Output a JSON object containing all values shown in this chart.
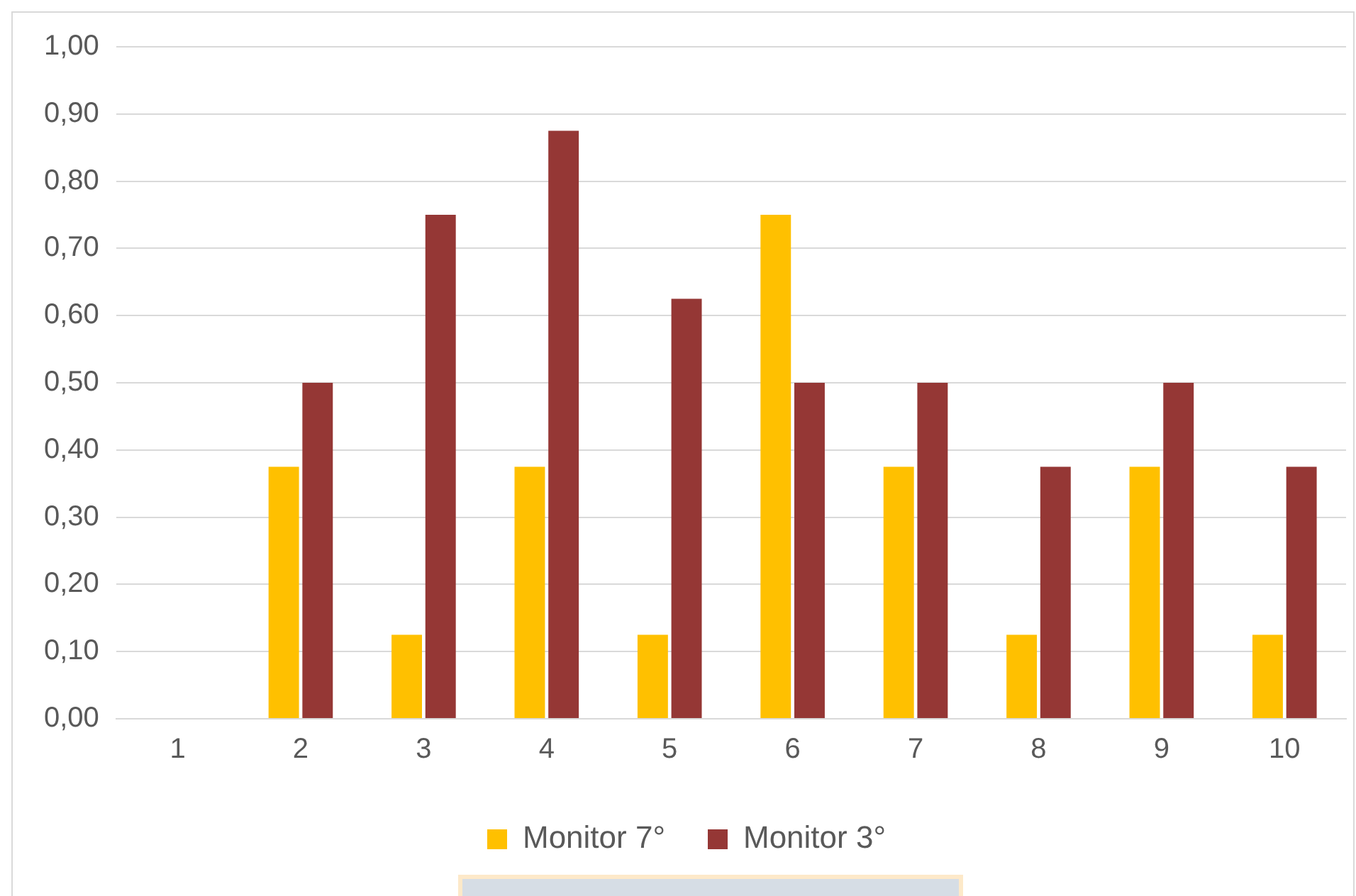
{
  "chart_data": {
    "type": "bar",
    "categories": [
      "1",
      "2",
      "3",
      "4",
      "5",
      "6",
      "7",
      "8",
      "9",
      "10"
    ],
    "series": [
      {
        "name": "Monitor 7°",
        "color": "#ffc000",
        "values": [
          0,
          0.375,
          0.125,
          0.375,
          0.125,
          0.75,
          0.375,
          0.125,
          0.375,
          0.125
        ]
      },
      {
        "name": "Monitor 3°",
        "color": "#953735",
        "values": [
          0,
          0.5,
          0.75,
          0.875,
          0.625,
          0.5,
          0.5,
          0.375,
          0.5,
          0.375
        ]
      }
    ],
    "ylim": [
      0,
      1
    ],
    "yticks": [
      {
        "value": 0,
        "label": "0,00"
      },
      {
        "value": 0.1,
        "label": "0,10"
      },
      {
        "value": 0.2,
        "label": "0,20"
      },
      {
        "value": 0.3,
        "label": "0,30"
      },
      {
        "value": 0.4,
        "label": "0,40"
      },
      {
        "value": 0.5,
        "label": "0,50"
      },
      {
        "value": 0.6,
        "label": "0,60"
      },
      {
        "value": 0.7,
        "label": "0,70"
      },
      {
        "value": 0.8,
        "label": "0,80"
      },
      {
        "value": 0.9,
        "label": "0,90"
      },
      {
        "value": 1,
        "label": "1,00"
      }
    ],
    "grid": "y",
    "legend": "bottom"
  }
}
